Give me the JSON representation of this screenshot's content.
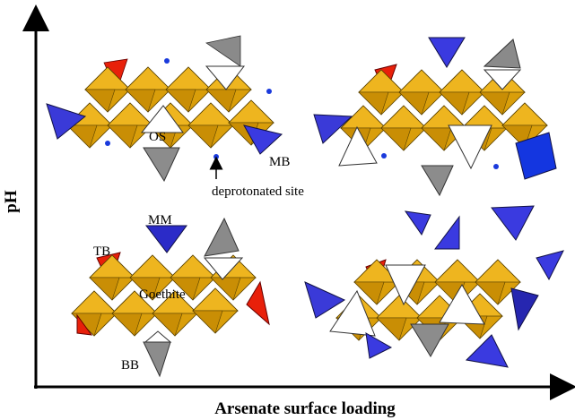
{
  "axes": {
    "y_label": "pH",
    "x_label": "Arsenate surface loading"
  },
  "labels": {
    "os": "OS",
    "mb": "MB",
    "deprotonated": "deprotonated site",
    "mm": "MM",
    "tb": "TB",
    "goethite": "Goethite",
    "bb": "BB"
  }
}
